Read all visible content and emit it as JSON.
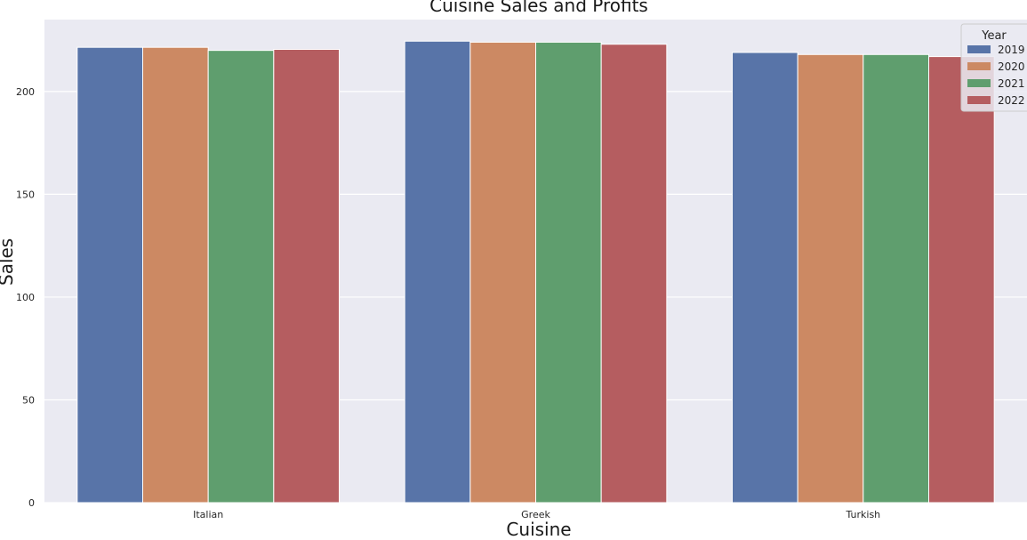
{
  "chart_data": {
    "type": "bar",
    "title": "Cuisine Sales and Profits",
    "xlabel": "Cuisine",
    "ylabel": "Sales",
    "categories": [
      "Italian",
      "Greek",
      "Turkish"
    ],
    "series": [
      {
        "name": "2019",
        "color": "#5874a8",
        "values": [
          221.5,
          224.5,
          219.0
        ]
      },
      {
        "name": "2020",
        "color": "#cc8963",
        "values": [
          221.5,
          224.0,
          218.0
        ]
      },
      {
        "name": "2021",
        "color": "#5f9e6e",
        "values": [
          220.0,
          224.0,
          218.0
        ]
      },
      {
        "name": "2022",
        "color": "#b55d60",
        "values": [
          220.5,
          223.0,
          217.0
        ]
      }
    ],
    "ylim": [
      0,
      235
    ],
    "yticks": [
      0,
      50,
      100,
      150,
      200
    ],
    "grid": true,
    "legend": {
      "title": "Year",
      "position": "top-right"
    },
    "background": "#eaeaf2"
  }
}
